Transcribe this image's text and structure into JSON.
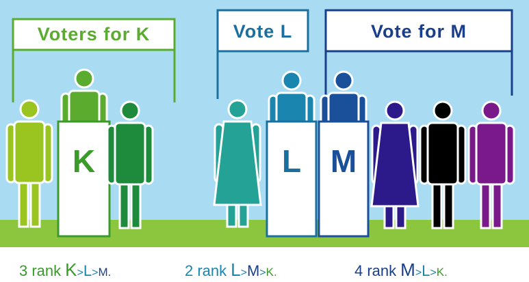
{
  "signs": [
    "Voters for K",
    "Vote L",
    "Vote for M"
  ],
  "podiums": [
    "K",
    "L",
    "M"
  ],
  "captions": [
    [
      "3 rank",
      "K",
      ">",
      "L",
      ">",
      "M."
    ],
    [
      "2 rank",
      "L",
      ">",
      "M",
      ">",
      "K."
    ],
    [
      "4 rank",
      "M",
      ">",
      "L",
      ">",
      "K."
    ]
  ]
}
